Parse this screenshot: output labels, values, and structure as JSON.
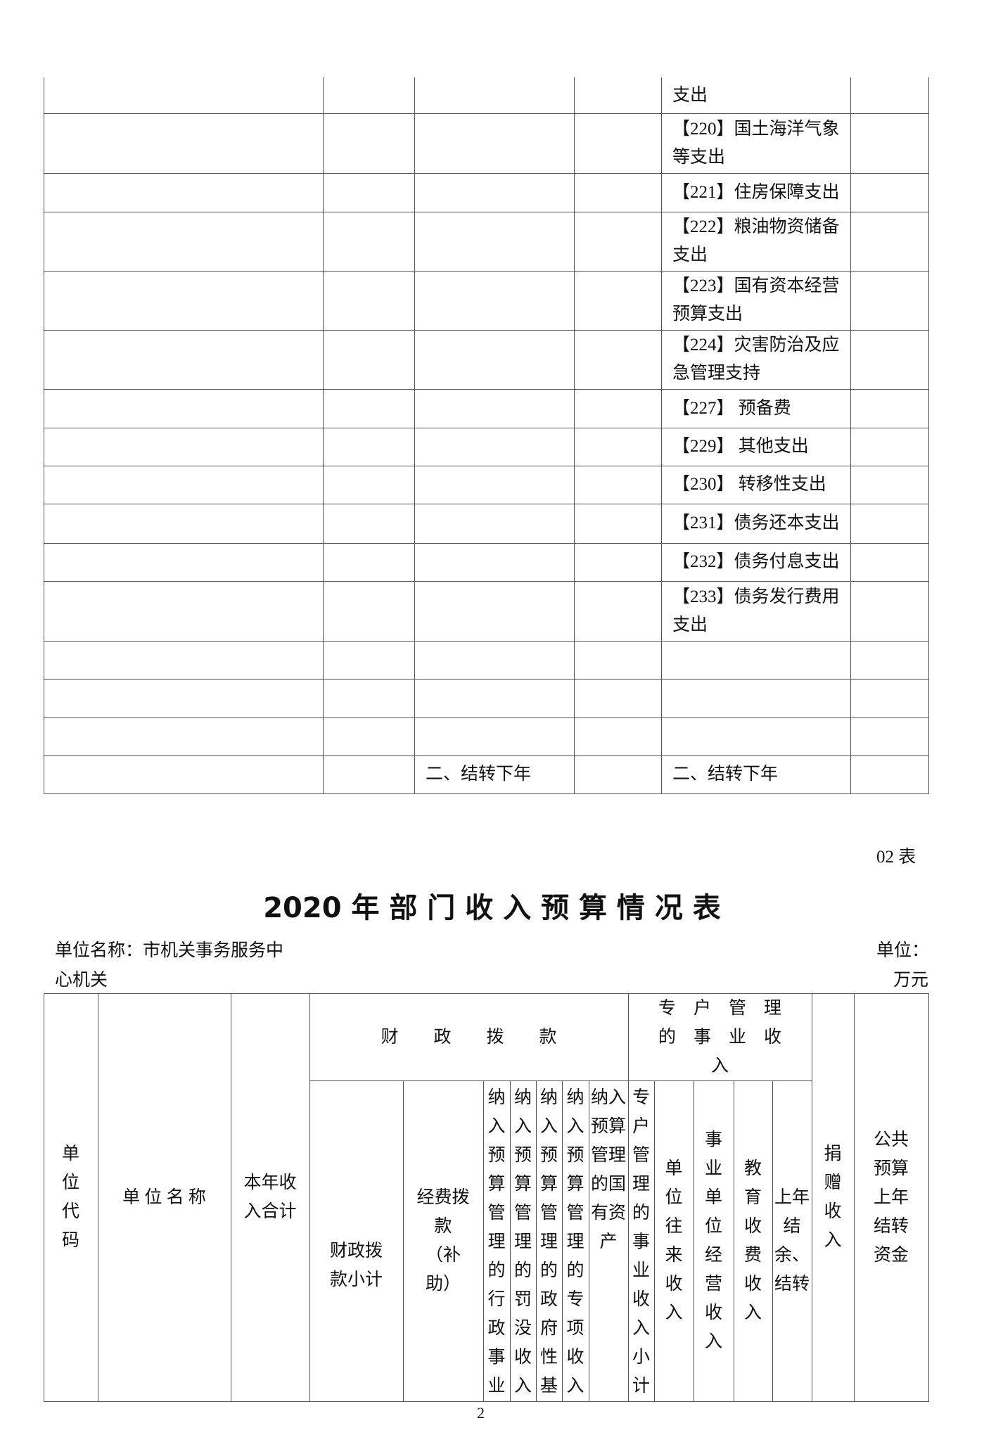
{
  "upper_table": {
    "rows": [
      {
        "col3": "",
        "col5": "支出"
      },
      {
        "col3": "",
        "col5": "【220】国土海洋气象\n等支出"
      },
      {
        "col3": "",
        "col5": "【221】住房保障支出"
      },
      {
        "col3": "",
        "col5": "【222】粮油物资储备\n支出"
      },
      {
        "col3": "",
        "col5": "【223】国有资本经营\n预算支出"
      },
      {
        "col3": "",
        "col5": "【224】灾害防治及应\n急管理支持"
      },
      {
        "col3": "",
        "col5": "【227】 预备费"
      },
      {
        "col3": "",
        "col5": "【229】 其他支出"
      },
      {
        "col3": "",
        "col5": "【230】 转移性支出"
      },
      {
        "col3": "",
        "col5": "【231】债务还本支出"
      },
      {
        "col3": "",
        "col5": "【232】债务付息支出"
      },
      {
        "col3": "",
        "col5": "【233】债务发行费用\n支出"
      },
      {
        "col3": "",
        "col5": ""
      },
      {
        "col3": "",
        "col5": ""
      },
      {
        "col3": "",
        "col5": ""
      },
      {
        "col3": "二、结转下年",
        "col5": "二、结转下年"
      }
    ]
  },
  "table_no": "02 表",
  "title": "2020 年 部 门 收 入 预 算 情 况 表",
  "unit_name_label": "单位名称：市机关事务服务中",
  "unit_name_cont": "心机关",
  "unit_label": "单位：",
  "unit_value": "万元",
  "income_table": {
    "headers": {
      "unit_code": "单\n位\n代\n码",
      "unit_name": "单 位 名 称",
      "total": "本年收\n入合计",
      "fiscal_group": "财　　政　　拨　　款",
      "special_group": "专　户　管　理\n的　事　业　收\n入",
      "fiscal_subtotal": "财政拨\n款小计",
      "funding": "经费拨\n款\n（补\n助）",
      "sub1": "纳入预算管理的行政事业",
      "sub2": "纳入预算管理的罚没收入",
      "sub3": "纳入预算管理的政府性基",
      "sub4": "纳入预算管理的专项收入",
      "sub5": "纳入预算管理的国有资产",
      "special_subtotal": "专户管理的事业收入小计",
      "inter_unit": "单位往来收入",
      "business": "事业单位经营收入",
      "education": "教育收费收入",
      "carryover": "上年结余、结转",
      "donation": "捐赠收入",
      "public_budget": "公共\n预算\n上年\n结转\n资金"
    }
  },
  "page_number": "2"
}
